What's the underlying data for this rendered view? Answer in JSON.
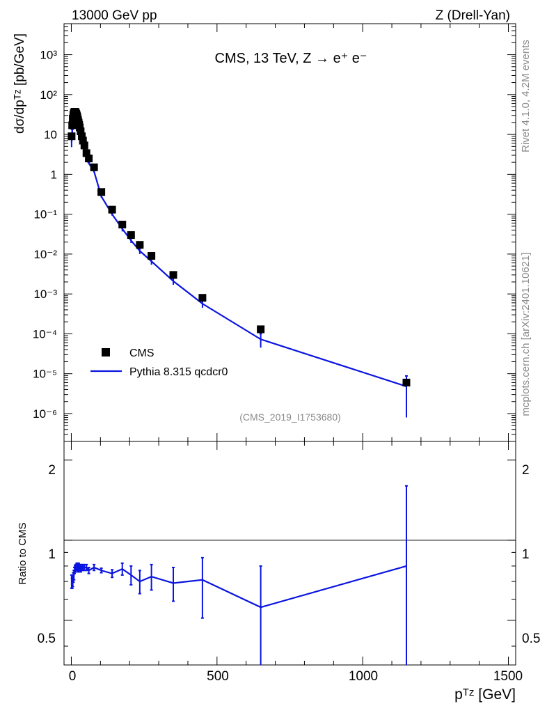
{
  "header": {
    "left": "13000 GeV pp",
    "right": "Z (Drell-Yan)"
  },
  "side": {
    "rivet": "Rivet 4.1.0,  4.2M events",
    "mcplots": "mcplots.cern.ch [arXiv:2401.10621]"
  },
  "main": {
    "title": "CMS, 13 TeV, Z →  e⁺ e⁻",
    "ylabel": "dσ/dpᵀᶻ [pb/GeV]",
    "analysis_id": "(CMS_2019_I1753680)",
    "legend": [
      {
        "label": "CMS"
      },
      {
        "label": "Pythia 8.315 qcdcr0"
      }
    ],
    "yticks": [
      "10⁻⁶",
      "10⁻⁵",
      "10⁻⁴",
      "10⁻³",
      "10⁻²",
      "10⁻¹",
      "1",
      "10",
      "10²",
      "10³"
    ]
  },
  "ratio": {
    "ylabel": "Ratio to CMS",
    "yticks": [
      "0.5",
      "1",
      "2"
    ]
  },
  "xaxis": {
    "label": "pᵀᶻ [GeV]",
    "ticks": [
      "0",
      "500",
      "1000",
      "1500"
    ]
  },
  "colors": {
    "data": "#000000",
    "mc": "#0a14e0"
  },
  "chart_data": {
    "type": "scatter",
    "title": "CMS, 13 TeV, Z → e+ e-",
    "xlabel": "pT^Z [GeV]",
    "ylabel": "dσ/dpT^Z [pb/GeV]",
    "xlim": [
      -25,
      1525
    ],
    "ylim": [
      2e-07,
      6000
    ],
    "yscale": "log",
    "ratio_ylim": [
      0.34,
      2.35
    ],
    "ratio_yscale": "log",
    "series": [
      {
        "name": "CMS",
        "marker": "square",
        "x": [
          1,
          3,
          5,
          7,
          9,
          11,
          13,
          15,
          17,
          19,
          21,
          23,
          25,
          27,
          29,
          32,
          36,
          40,
          45,
          52,
          60,
          78,
          103,
          140,
          175,
          205,
          235,
          275,
          350,
          450,
          650,
          1150
        ],
        "y": [
          9,
          17,
          25,
          31,
          35,
          37,
          37,
          36,
          33,
          30,
          27,
          23,
          20,
          17.5,
          15,
          12,
          9,
          7,
          5.3,
          3.4,
          2.5,
          1.5,
          0.36,
          0.13,
          0.055,
          0.03,
          0.017,
          0.009,
          0.003,
          0.0008,
          0.00013,
          6e-06
        ]
      },
      {
        "name": "Pythia 8.315 qcdcr0",
        "x": [
          1,
          3,
          5,
          7,
          9,
          11,
          13,
          15,
          17,
          19,
          21,
          23,
          25,
          27,
          29,
          32,
          36,
          40,
          45,
          52,
          60,
          78,
          103,
          140,
          175,
          205,
          235,
          275,
          350,
          450,
          650,
          1150
        ],
        "y": [
          6.3,
          11.8,
          17.5,
          22.5,
          26,
          28.5,
          29,
          28.5,
          26,
          24,
          21.5,
          18,
          16,
          13.8,
          11.8,
          9.4,
          7.1,
          5.5,
          4.2,
          2.7,
          1.9,
          1.18,
          0.28,
          0.1,
          0.043,
          0.022,
          0.012,
          0.0066,
          0.0021,
          0.00057,
          7.3e-05,
          4.8e-06
        ],
        "yerr": [
          1.5,
          1.5,
          1.2,
          1.2,
          1,
          1,
          1,
          1,
          1,
          1,
          1,
          1,
          0.8,
          0.7,
          0.6,
          0.5,
          0.4,
          0.3,
          0.25,
          0.15,
          0.12,
          0.06,
          0.02,
          0.008,
          0.006,
          0.003,
          0.002,
          0.0012,
          0.0004,
          0.00012,
          2.8e-05,
          4e-06
        ]
      }
    ],
    "ratio": {
      "name": "Pythia 8.315 qcdcr0 / CMS",
      "x": [
        1,
        3,
        5,
        7,
        9,
        11,
        13,
        15,
        17,
        19,
        21,
        23,
        25,
        27,
        29,
        32,
        36,
        40,
        45,
        52,
        60,
        78,
        103,
        140,
        175,
        205,
        235,
        275,
        350,
        450,
        650,
        1150
      ],
      "y": [
        0.7,
        0.69,
        0.7,
        0.725,
        0.74,
        0.77,
        0.78,
        0.79,
        0.79,
        0.8,
        0.8,
        0.78,
        0.8,
        0.79,
        0.79,
        0.78,
        0.79,
        0.79,
        0.79,
        0.79,
        0.77,
        0.79,
        0.77,
        0.75,
        0.78,
        0.74,
        0.7,
        0.73,
        0.69,
        0.71,
        0.56,
        0.8
      ],
      "err_lo": [
        0.04,
        0.03,
        0.03,
        0.03,
        0.03,
        0.02,
        0.02,
        0.02,
        0.02,
        0.02,
        0.02,
        0.02,
        0.02,
        0.02,
        0.02,
        0.02,
        0.02,
        0.02,
        0.02,
        0.02,
        0.02,
        0.02,
        0.015,
        0.025,
        0.04,
        0.06,
        0.07,
        0.08,
        0.1,
        0.2,
        0.3,
        0.6
      ],
      "err_hi": [
        0.04,
        0.03,
        0.03,
        0.03,
        0.03,
        0.02,
        0.02,
        0.02,
        0.02,
        0.02,
        0.02,
        0.02,
        0.02,
        0.02,
        0.02,
        0.02,
        0.02,
        0.02,
        0.02,
        0.02,
        0.02,
        0.02,
        0.015,
        0.025,
        0.04,
        0.06,
        0.07,
        0.08,
        0.1,
        0.15,
        0.24,
        0.8
      ]
    },
    "legend_position": "lower-left"
  }
}
